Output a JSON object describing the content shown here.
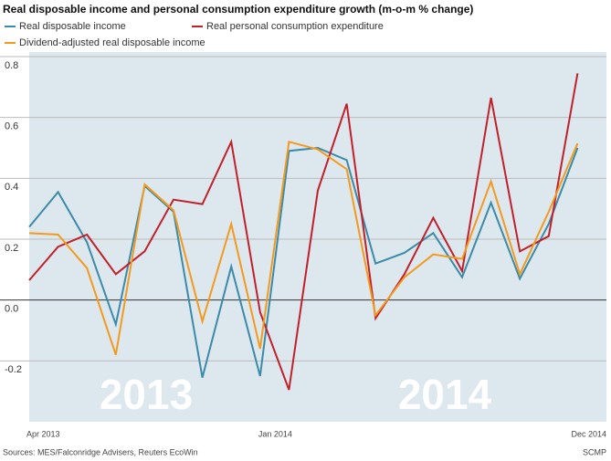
{
  "chart_data": {
    "type": "line",
    "title": "Real disposable income and personal consumption expenditure growth (m-o-m % change)",
    "categories": [
      "Apr 2013",
      null,
      null,
      null,
      null,
      null,
      null,
      null,
      null,
      "Jan 2014",
      null,
      null,
      null,
      null,
      null,
      null,
      null,
      null,
      null,
      null,
      "Dec 2014"
    ],
    "series": [
      {
        "name": "Real disposable income",
        "color": "#3a8aa8",
        "values": [
          0.24,
          0.355,
          0.19,
          -0.08,
          0.375,
          0.29,
          -0.255,
          0.11,
          -0.25,
          0.49,
          0.5,
          0.46,
          0.12,
          0.155,
          0.22,
          0.075,
          0.32,
          0.07,
          0.25,
          0.5,
          null
        ]
      },
      {
        "name": "Real personal consumption expenditure",
        "color": "#c0202a",
        "values": [
          0.065,
          0.175,
          0.215,
          0.085,
          0.16,
          0.33,
          0.315,
          0.52,
          -0.04,
          -0.295,
          0.36,
          0.645,
          -0.06,
          0.085,
          0.27,
          0.095,
          0.665,
          0.16,
          0.21,
          0.745,
          null
        ]
      },
      {
        "name": "Dividend-adjusted real disposable income",
        "color": "#f39a1e",
        "values": [
          0.22,
          0.215,
          0.105,
          -0.18,
          0.38,
          0.295,
          -0.07,
          0.25,
          -0.16,
          0.52,
          0.495,
          0.43,
          -0.05,
          0.075,
          0.15,
          0.135,
          0.39,
          0.085,
          0.29,
          0.515,
          null
        ]
      }
    ],
    "ylim": [
      -0.4,
      0.815
    ],
    "yticks": [
      {
        "value": 0.8,
        "label": "0.8"
      },
      {
        "value": 0.6,
        "label": "0.6"
      },
      {
        "value": 0.4,
        "label": "0.4"
      },
      {
        "value": 0.2,
        "label": "0.2"
      },
      {
        "value": 0,
        "label": "0.0"
      },
      {
        "value": -0.2,
        "label": "-0.2"
      }
    ],
    "grid": true,
    "annotations": [
      "2013",
      "2014"
    ],
    "source": "Sources: MES/Falconridge Advisers, Reuters EcoWin",
    "credit": "SCMP"
  }
}
